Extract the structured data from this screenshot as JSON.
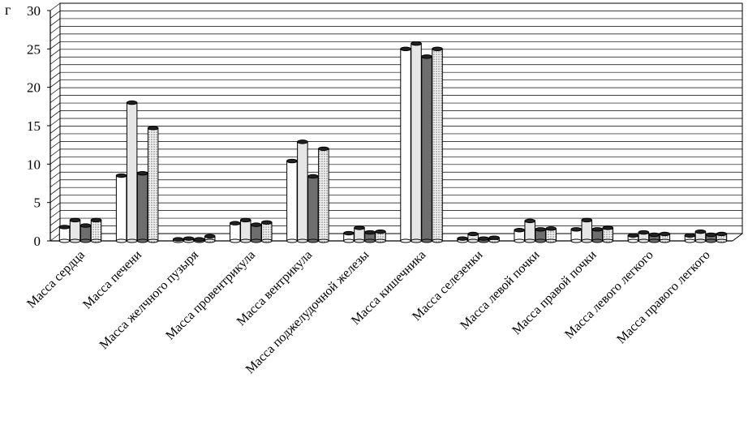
{
  "chart_data": {
    "type": "bar",
    "ylabel": "г",
    "ylim": [
      0,
      30
    ],
    "yticks": [
      0,
      5,
      10,
      15,
      20,
      25,
      30
    ],
    "grid": true,
    "categories": [
      "Масса сердца",
      "Масса печени",
      "Масса желчного пузыря",
      "Масса провентрикула",
      "Масса вентрикула",
      "Масса поджелудочной железы",
      "Масса кишечника",
      "Масса селезенки",
      "Масса левой почки",
      "Масса правой почки",
      "Масса левого легкого",
      "Масса правого легкого"
    ],
    "series": [
      {
        "fill": "#ffffff",
        "values": [
          1.8,
          8.5,
          0.2,
          2.3,
          10.4,
          1.0,
          25.0,
          0.3,
          1.4,
          1.5,
          0.7,
          0.7
        ]
      },
      {
        "fill": "#e6e6e6",
        "values": [
          2.7,
          18.0,
          0.3,
          2.7,
          12.9,
          1.7,
          25.7,
          0.9,
          2.6,
          2.7,
          1.1,
          1.2
        ]
      },
      {
        "fill": "#6e6e6e",
        "values": [
          2.0,
          8.8,
          0.2,
          2.1,
          8.4,
          1.1,
          24.0,
          0.3,
          1.5,
          1.5,
          0.8,
          0.8
        ]
      },
      {
        "fill": "#d0d0d0",
        "pattern": "dots",
        "values": [
          2.7,
          14.7,
          0.6,
          2.4,
          12.0,
          1.2,
          25.0,
          0.4,
          1.6,
          1.7,
          0.9,
          0.9
        ]
      }
    ]
  }
}
